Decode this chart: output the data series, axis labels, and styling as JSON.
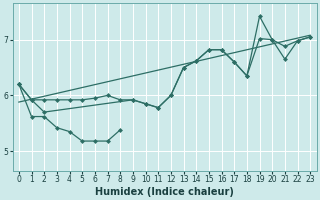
{
  "xlabel": "Humidex (Indice chaleur)",
  "background_color": "#ceeaea",
  "grid_color": "#b8d8d8",
  "line_color": "#2d6e65",
  "xlim": [
    -0.5,
    23.5
  ],
  "ylim": [
    4.65,
    7.65
  ],
  "xticks": [
    0,
    1,
    2,
    3,
    4,
    5,
    6,
    7,
    8,
    9,
    10,
    11,
    12,
    13,
    14,
    15,
    16,
    17,
    18,
    19,
    20,
    21,
    22,
    23
  ],
  "yticks": [
    5,
    6,
    7
  ],
  "trend_x": [
    0,
    23
  ],
  "trend_y": [
    5.88,
    7.08
  ],
  "line_flat_x": [
    0,
    1,
    2,
    3,
    4,
    5,
    6,
    7,
    8,
    9,
    10,
    11,
    12,
    13,
    14,
    15,
    16,
    17,
    18,
    19,
    20,
    21,
    22,
    23
  ],
  "line_flat_y": [
    6.2,
    5.92,
    5.92,
    5.92,
    5.92,
    5.92,
    5.95,
    6.0,
    5.92,
    5.92,
    5.85,
    5.78,
    6.0,
    6.5,
    6.62,
    6.82,
    6.82,
    6.6,
    6.35,
    7.02,
    7.0,
    6.88,
    6.98,
    7.05
  ],
  "line_low_x": [
    0,
    1,
    2,
    3,
    4,
    5,
    6,
    7,
    8
  ],
  "line_low_y": [
    6.2,
    5.62,
    5.62,
    5.42,
    5.35,
    5.18,
    5.18,
    5.18,
    5.38
  ],
  "line_upper_x": [
    0,
    1,
    2,
    9,
    10,
    11,
    12,
    13,
    14,
    15,
    16,
    17,
    18,
    19,
    20,
    21,
    22,
    23
  ],
  "line_upper_y": [
    6.2,
    5.92,
    5.7,
    5.92,
    5.85,
    5.78,
    6.0,
    6.5,
    6.62,
    6.82,
    6.82,
    6.6,
    6.35,
    7.42,
    7.0,
    6.65,
    6.98,
    7.05
  ],
  "marker_size": 2.5,
  "linewidth": 0.9
}
